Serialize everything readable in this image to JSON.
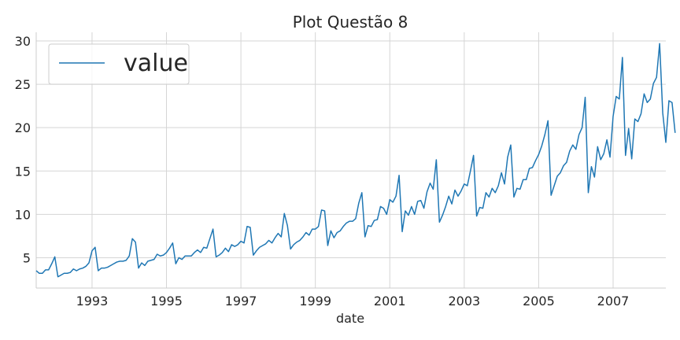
{
  "chart_data": {
    "type": "line",
    "title": "Plot Questão 8",
    "xlabel": "date",
    "ylabel": "",
    "x_start": "1991-07",
    "frequency": "monthly",
    "xlim": [
      "1991-07",
      "2008-06"
    ],
    "ylim": [
      1.5,
      31
    ],
    "xticks": [
      "1993",
      "1995",
      "1997",
      "1999",
      "2001",
      "2003",
      "2005",
      "2007"
    ],
    "yticks": [
      5,
      10,
      15,
      20,
      25,
      30
    ],
    "grid": true,
    "legend": {
      "position": "upper-left",
      "entries": [
        "value"
      ]
    },
    "series": [
      {
        "name": "value",
        "color": "#1f77b4",
        "values": [
          3.5,
          3.2,
          3.2,
          3.6,
          3.6,
          4.3,
          5.1,
          2.8,
          3.0,
          3.2,
          3.2,
          3.3,
          3.7,
          3.5,
          3.7,
          3.8,
          4.0,
          4.4,
          5.8,
          6.2,
          3.5,
          3.8,
          3.8,
          3.9,
          4.1,
          4.3,
          4.5,
          4.6,
          4.6,
          4.7,
          5.2,
          7.2,
          6.8,
          3.8,
          4.4,
          4.1,
          4.6,
          4.7,
          4.8,
          5.4,
          5.2,
          5.3,
          5.6,
          6.1,
          6.7,
          4.3,
          5.0,
          4.8,
          5.2,
          5.2,
          5.2,
          5.6,
          5.9,
          5.6,
          6.2,
          6.1,
          7.2,
          8.3,
          5.1,
          5.3,
          5.6,
          6.1,
          5.7,
          6.5,
          6.3,
          6.5,
          6.9,
          6.7,
          8.6,
          8.5,
          5.3,
          5.8,
          6.2,
          6.4,
          6.6,
          7.0,
          6.7,
          7.3,
          7.8,
          7.4,
          10.1,
          8.7,
          6.0,
          6.5,
          6.8,
          7.0,
          7.4,
          7.9,
          7.6,
          8.3,
          8.3,
          8.6,
          10.5,
          10.4,
          6.4,
          8.1,
          7.3,
          7.9,
          8.1,
          8.6,
          9.0,
          9.2,
          9.2,
          9.5,
          11.3,
          12.5,
          7.4,
          8.7,
          8.6,
          9.3,
          9.4,
          10.9,
          10.7,
          10.0,
          11.7,
          11.4,
          12.1,
          14.5,
          8.0,
          10.4,
          9.9,
          10.9,
          10.0,
          11.5,
          11.6,
          10.7,
          12.6,
          13.6,
          12.9,
          16.3,
          9.1,
          9.9,
          10.9,
          12.1,
          11.2,
          12.8,
          12.1,
          12.7,
          13.5,
          13.3,
          15.0,
          16.8,
          9.8,
          10.8,
          10.7,
          12.5,
          12.0,
          13.0,
          12.5,
          13.3,
          14.8,
          13.5,
          16.6,
          18.0,
          12.0,
          13.0,
          12.9,
          14.0,
          14.0,
          15.3,
          15.4,
          16.2,
          16.9,
          17.9,
          19.2,
          20.8,
          12.2,
          13.3,
          14.4,
          14.8,
          15.6,
          16.0,
          17.3,
          18.0,
          17.5,
          19.2,
          20.0,
          23.5,
          12.5,
          15.5,
          14.3,
          17.8,
          16.3,
          17.0,
          18.6,
          16.6,
          21.3,
          23.6,
          23.3,
          28.1,
          16.8,
          19.9,
          16.4,
          21.0,
          20.7,
          21.6,
          23.9,
          22.9,
          23.3,
          25.1,
          25.8,
          29.7,
          21.7,
          18.3,
          23.1,
          22.9,
          19.4
        ]
      }
    ]
  }
}
